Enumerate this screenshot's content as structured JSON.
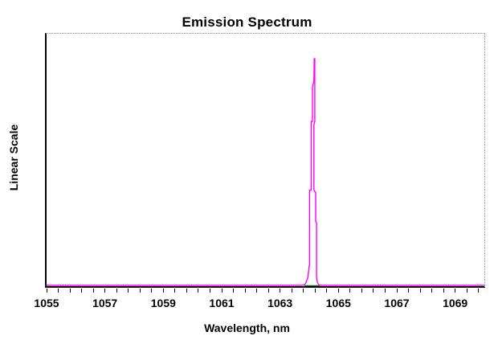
{
  "chart_data": {
    "type": "line",
    "title": "Emission Spectrum",
    "xlabel": "Wavelength, nm",
    "ylabel": "Linear Scale",
    "x_axis": {
      "min": 1055,
      "max": 1070,
      "tick_labels": [
        "1055",
        "1057",
        "1059",
        "1061",
        "1063",
        "1065",
        "1067",
        "1069"
      ],
      "tick_label_values": [
        1055,
        1057,
        1059,
        1061,
        1063,
        1065,
        1067,
        1069
      ],
      "minor_tick_step_nm": 0.4
    },
    "y_axis": {
      "scale": "linear",
      "min": 0,
      "max": 1,
      "ticks_visible": false
    },
    "series": [
      {
        "name": "emission-spectrum-trace",
        "color": "#FF00FF",
        "points": [
          [
            1055.0,
            0
          ],
          [
            1063.7,
            0
          ],
          [
            1063.84,
            0.002
          ],
          [
            1063.89,
            0.012
          ],
          [
            1063.95,
            0.03
          ],
          [
            1064.0,
            0.079
          ],
          [
            1064.01,
            0.079
          ],
          [
            1064.01,
            0.38
          ],
          [
            1064.07,
            0.38
          ],
          [
            1064.07,
            0.655
          ],
          [
            1064.11,
            0.655
          ],
          [
            1064.11,
            0.79
          ],
          [
            1064.16,
            0.816
          ],
          [
            1064.17,
            0.905
          ],
          [
            1064.19,
            0.905
          ],
          [
            1064.19,
            0.655
          ],
          [
            1064.16,
            0.64
          ],
          [
            1064.16,
            0.38
          ],
          [
            1064.22,
            0.37
          ],
          [
            1064.22,
            0.255
          ],
          [
            1064.25,
            0.25
          ],
          [
            1064.25,
            0.03
          ],
          [
            1064.28,
            0.012
          ],
          [
            1064.32,
            0.002
          ],
          [
            1064.45,
            0
          ],
          [
            1070.0,
            0
          ]
        ]
      },
      {
        "name": "peak-base-marker",
        "color": "#008000",
        "points": [
          [
            1063.83,
            0
          ],
          [
            1064.37,
            0
          ]
        ]
      }
    ],
    "peak": {
      "center_nm": 1064.17,
      "height_fraction_of_scale": 0.9
    },
    "frame": {
      "axis_color": "#000000",
      "frame_color": "#8A8A8A",
      "background": "#FFFFFF",
      "text_color": "#000000"
    }
  }
}
